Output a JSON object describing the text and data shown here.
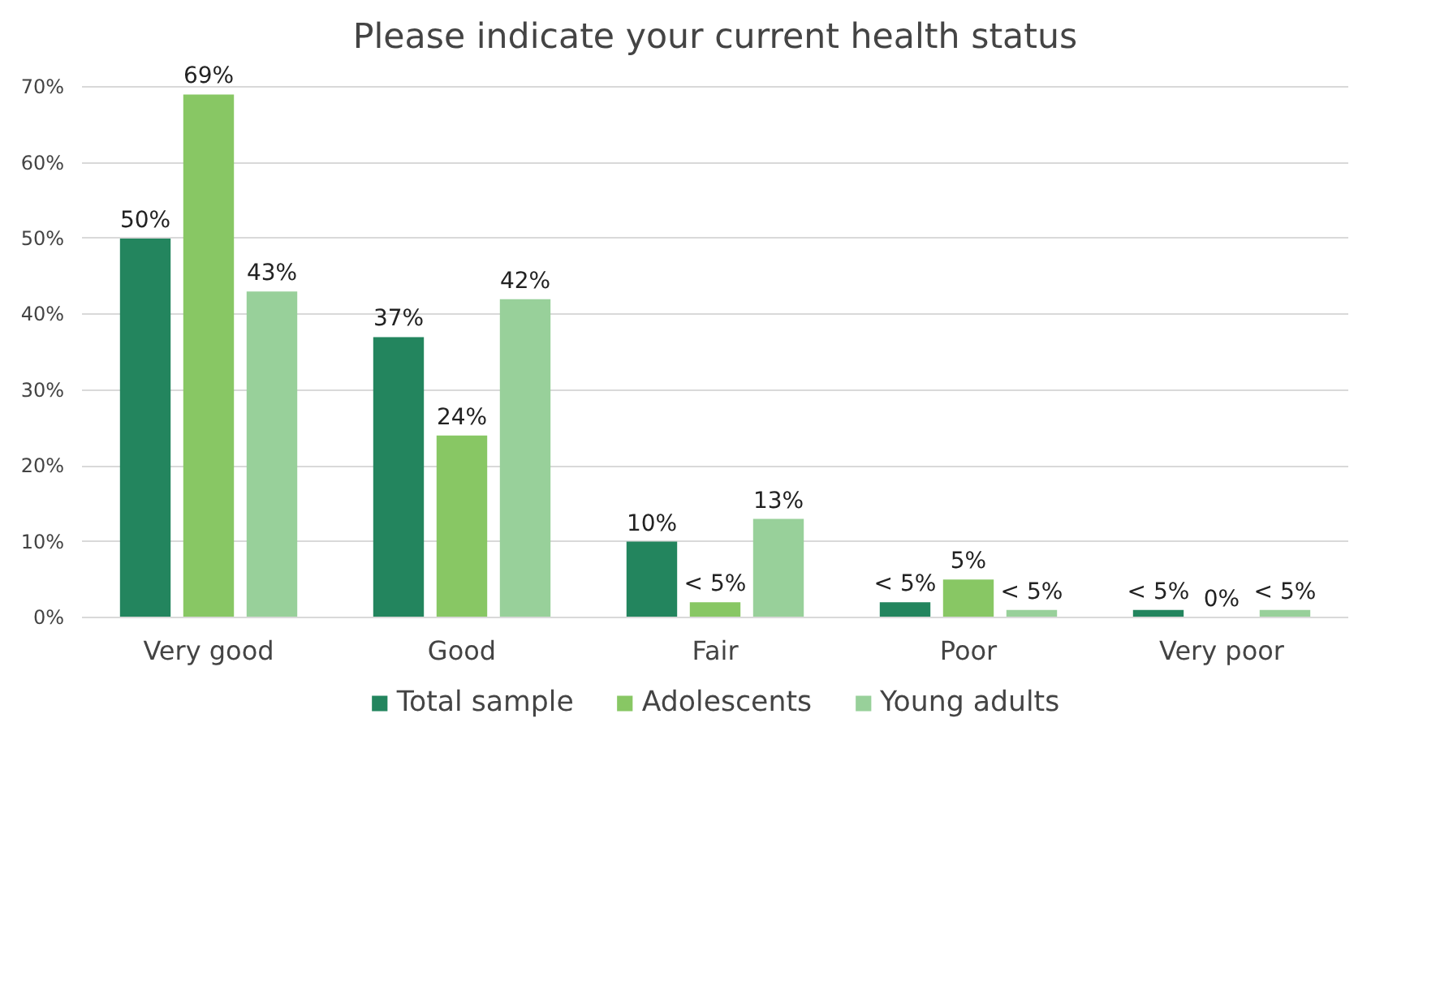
{
  "chart_data": {
    "type": "bar",
    "title": "Please indicate your current health status",
    "categories": [
      "Very good",
      "Good",
      "Fair",
      "Poor",
      "Very poor"
    ],
    "series": [
      {
        "name": "Total sample",
        "color": "#23855e",
        "values": [
          50,
          37,
          10,
          2,
          1
        ],
        "value_labels": [
          "50%",
          "37%",
          "10%",
          "< 5%",
          "< 5%"
        ]
      },
      {
        "name": "Adolescents",
        "color": "#88c764",
        "values": [
          69,
          24,
          2,
          5,
          0
        ],
        "value_labels": [
          "69%",
          "24%",
          "< 5%",
          "5%",
          "0%"
        ]
      },
      {
        "name": "Young adults",
        "color": "#98d09a",
        "values": [
          43,
          42,
          13,
          1,
          1
        ],
        "value_labels": [
          "43%",
          "42%",
          "13%",
          "< 5%",
          "< 5%"
        ]
      }
    ],
    "ylim": [
      0,
      70
    ],
    "yticks": [
      {
        "value": 0,
        "label": "0%"
      },
      {
        "value": 10,
        "label": "10%"
      },
      {
        "value": 20,
        "label": "20%"
      },
      {
        "value": 30,
        "label": "30%"
      },
      {
        "value": 40,
        "label": "40%"
      },
      {
        "value": 50,
        "label": "50%"
      },
      {
        "value": 60,
        "label": "60%"
      },
      {
        "value": 70,
        "label": "70%"
      }
    ],
    "grid": "y",
    "legend": "bottom"
  }
}
